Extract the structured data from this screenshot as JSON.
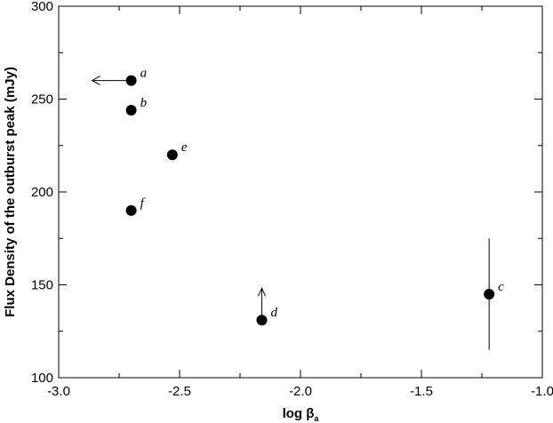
{
  "chart_data": {
    "type": "scatter",
    "title": "",
    "xlabel": "log β",
    "xlabel_subscript": "a",
    "ylabel": "Flux Density of the outburst peak (mJy)",
    "xlim": [
      -3.0,
      -1.0
    ],
    "ylim": [
      100,
      300
    ],
    "x_ticks": [
      -3.0,
      -2.5,
      -2.0,
      -1.5,
      -1.0
    ],
    "x_tick_labels": [
      "-3.0",
      "-2.5",
      "-2.0",
      "-1.5",
      "-1.0"
    ],
    "y_ticks": [
      100,
      150,
      200,
      250,
      300
    ],
    "y_tick_labels": [
      "100",
      "150",
      "200",
      "250",
      "300"
    ],
    "grid": false,
    "legend": "none",
    "marker_color": "#000000",
    "points": [
      {
        "label": "a",
        "x": -2.7,
        "y": 260,
        "limit": "upper-x"
      },
      {
        "label": "b",
        "x": -2.7,
        "y": 244
      },
      {
        "label": "e",
        "x": -2.53,
        "y": 220
      },
      {
        "label": "f",
        "x": -2.7,
        "y": 190
      },
      {
        "label": "d",
        "x": -2.16,
        "y": 131,
        "limit": "lower-y"
      },
      {
        "label": "c",
        "x": -1.22,
        "y": 145,
        "yerr": [
          115,
          175
        ]
      }
    ]
  }
}
